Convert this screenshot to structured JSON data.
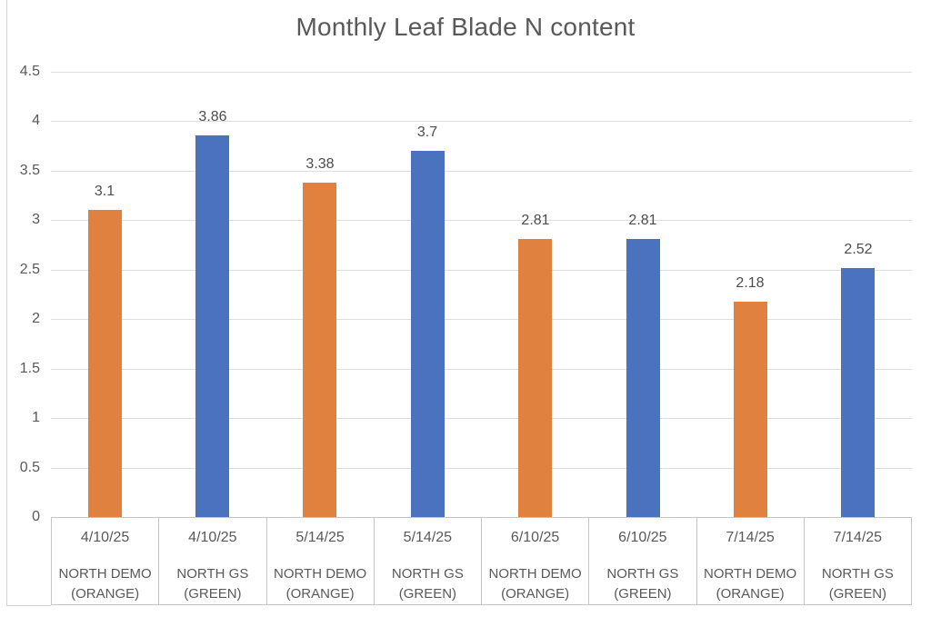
{
  "chart_data": {
    "type": "bar",
    "title": "Monthly Leaf Blade N content",
    "xlabel": "",
    "ylabel": "",
    "ylim": [
      0,
      4.5
    ],
    "ytick_step": 0.5,
    "grid": true,
    "legend": false,
    "yticks": [
      {
        "label": "0",
        "value": 0
      },
      {
        "label": "0.5",
        "value": 0.5
      },
      {
        "label": "1",
        "value": 1
      },
      {
        "label": "1.5",
        "value": 1.5
      },
      {
        "label": "2",
        "value": 2
      },
      {
        "label": "2.5",
        "value": 2.5
      },
      {
        "label": "3",
        "value": 3
      },
      {
        "label": "3.5",
        "value": 3.5
      },
      {
        "label": "4",
        "value": 4
      },
      {
        "label": "4.5",
        "value": 4.5
      }
    ],
    "points": [
      {
        "date": "4/10/25",
        "group_line1": "NORTH DEMO",
        "group_line2": "(ORANGE)",
        "value": 3.1,
        "label": "3.1",
        "series": "orange"
      },
      {
        "date": "4/10/25",
        "group_line1": "NORTH GS",
        "group_line2": "(GREEN)",
        "value": 3.86,
        "label": "3.86",
        "series": "blue"
      },
      {
        "date": "5/14/25",
        "group_line1": "NORTH DEMO",
        "group_line2": "(ORANGE)",
        "value": 3.38,
        "label": "3.38",
        "series": "orange"
      },
      {
        "date": "5/14/25",
        "group_line1": "NORTH GS",
        "group_line2": "(GREEN)",
        "value": 3.7,
        "label": "3.7",
        "series": "blue"
      },
      {
        "date": "6/10/25",
        "group_line1": "NORTH DEMO",
        "group_line2": "(ORANGE)",
        "value": 2.81,
        "label": "2.81",
        "series": "orange"
      },
      {
        "date": "6/10/25",
        "group_line1": "NORTH GS",
        "group_line2": "(GREEN)",
        "value": 2.81,
        "label": "2.81",
        "series": "blue"
      },
      {
        "date": "7/14/25",
        "group_line1": "NORTH DEMO",
        "group_line2": "(ORANGE)",
        "value": 2.18,
        "label": "2.18",
        "series": "orange"
      },
      {
        "date": "7/14/25",
        "group_line1": "NORTH GS",
        "group_line2": "(GREEN)",
        "value": 2.52,
        "label": "2.52",
        "series": "blue"
      }
    ],
    "colors": {
      "orange": "#E0813F",
      "blue": "#4A72BE",
      "gridline": "#DEDEDE",
      "axis_table_line": "#C6C6C6",
      "text": "#595959",
      "title": "#595959",
      "background": "#FFFFFF"
    }
  }
}
